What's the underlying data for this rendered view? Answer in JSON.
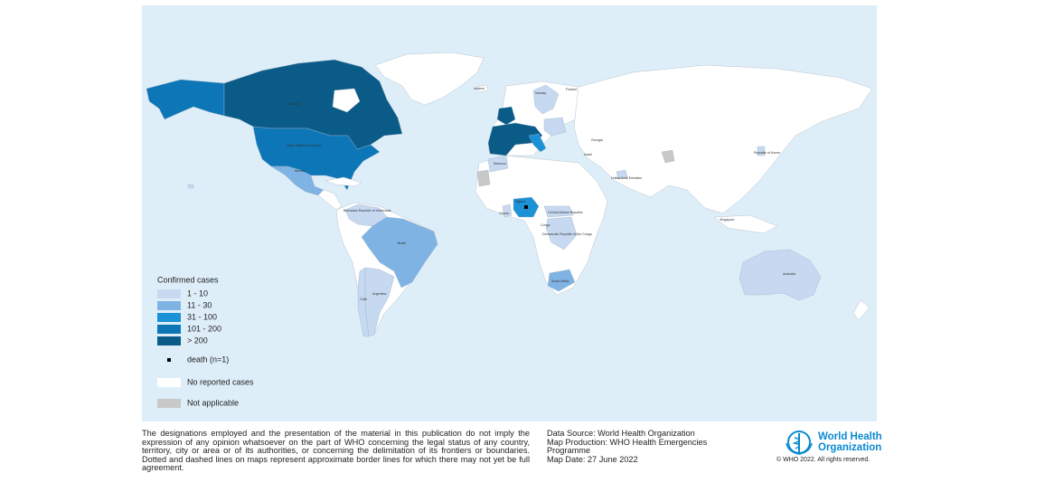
{
  "map": {
    "country_labels": [
      "Canada",
      "United States of America",
      "Mexico",
      "Bolivarian Republic of Venezuela",
      "Brazil",
      "Argentina",
      "Chile",
      "Iceland",
      "Norway",
      "Finland",
      "Morocco",
      "Ghana",
      "Nigeria",
      "Central African Republic",
      "Congo",
      "Democratic Republic of the Congo",
      "South Africa",
      "Israel",
      "Georgia",
      "United Arab Emirates",
      "Singapore",
      "Republic of Korea",
      "Australia"
    ]
  },
  "legend": {
    "title": "Confirmed cases",
    "items": [
      {
        "label": "1 - 10",
        "color": "#c6d9f1"
      },
      {
        "label": "11 - 30",
        "color": "#7fb3e3"
      },
      {
        "label": "31 - 100",
        "color": "#1c92d6"
      },
      {
        "label": "101 - 200",
        "color": "#0d76b6"
      },
      {
        "label": "> 200",
        "color": "#0b5b89"
      }
    ],
    "death": {
      "label": "death (n=1)",
      "color": "#000000"
    },
    "no_data": {
      "label": "No reported cases",
      "color": "#ffffff"
    },
    "not_applicable": {
      "label": "Not applicable",
      "color": "#c8c8c8"
    }
  },
  "footer": {
    "disclaimer": "The designations employed and the presentation of the material in this publication do not imply the expression of any opinion whatsoever on the part of WHO concerning the legal status of any country, territory, city or area or of its authorities, or concerning the delimitation of its frontiers or boundaries. Dotted and dashed lines on maps represent approximate border lines for which there may not yet be full agreement.",
    "source_lines": [
      "Data Source: World Health Organization",
      "Map Production: WHO Health Emergencies Programme",
      "Map Date: 27 June 2022"
    ],
    "logo_lines": [
      "World Health",
      "Organization"
    ],
    "copyright": "© WHO 2022. All rights reserved."
  }
}
